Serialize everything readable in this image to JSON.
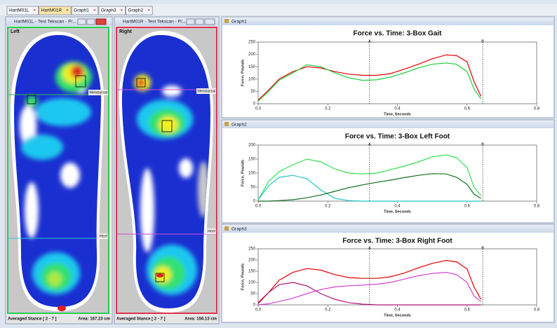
{
  "tabs": [
    "HartM01L",
    "HartM01R",
    "Graph1",
    "Graph3",
    "Graph2"
  ],
  "panels": [
    {
      "window_title": "HartM01L - Test Tekscan - P/...",
      "side": "Left",
      "regions": [
        "Metatarsal",
        "Heel"
      ],
      "stance": "Averaged Stance [ 2 - 7 ]",
      "area": "Area: 167.23 cm"
    },
    {
      "window_title": "HartM01R - Test Tekscan - P/...",
      "side": "Right",
      "regions": [
        "Metatarsal",
        "Heel"
      ],
      "stance": "Averaged Stance [ 2 - 7 ]",
      "area": "Area: 156.13 cm"
    }
  ],
  "chart_data": [
    {
      "type": "line",
      "window_title": "Graph1",
      "title": "Force vs. Time: 3-Box Gait",
      "x_label": "Time, Seconds",
      "y_label": "Force, Pounds",
      "x": [
        0,
        0.03,
        0.06,
        0.1,
        0.14,
        0.18,
        0.22,
        0.26,
        0.3,
        0.34,
        0.38,
        0.42,
        0.46,
        0.5,
        0.54,
        0.57,
        0.6,
        0.62,
        0.64
      ],
      "series": [
        {
          "color": "#e00000",
          "values": [
            15,
            55,
            100,
            130,
            150,
            145,
            130,
            120,
            115,
            115,
            122,
            140,
            160,
            182,
            198,
            195,
            170,
            90,
            30
          ]
        },
        {
          "color": "#20d040",
          "values": [
            10,
            50,
            95,
            125,
            158,
            150,
            125,
            105,
            95,
            97,
            108,
            125,
            145,
            160,
            165,
            160,
            130,
            60,
            20
          ]
        }
      ],
      "markers": [
        {
          "label": "A",
          "value": 0.32
        },
        {
          "label": "B",
          "value": 0.645
        }
      ],
      "xlim": [
        0,
        0.8
      ],
      "xticks": [
        {
          "value": 0,
          "label": "0.0"
        },
        0.2,
        0.4,
        0.6,
        0.8
      ],
      "ylim": [
        0,
        250
      ],
      "yticks": [
        0,
        50,
        100,
        150,
        200,
        250
      ]
    },
    {
      "type": "line",
      "window_title": "Graph2",
      "title": "Force vs. Time: 3-Box Left Foot",
      "x_label": "Time, Seconds",
      "y_label": "Force, Pounds",
      "x": [
        0,
        0.03,
        0.06,
        0.1,
        0.14,
        0.18,
        0.22,
        0.26,
        0.3,
        0.34,
        0.38,
        0.42,
        0.46,
        0.5,
        0.54,
        0.57,
        0.6,
        0.62,
        0.64
      ],
      "series": [
        {
          "color": "#30e050",
          "values": [
            5,
            70,
            105,
            130,
            150,
            140,
            115,
            100,
            97,
            100,
            112,
            125,
            140,
            158,
            165,
            155,
            120,
            50,
            20
          ]
        },
        {
          "color": "#20c8c8",
          "values": [
            5,
            55,
            85,
            92,
            80,
            40,
            10,
            2,
            0,
            0,
            0,
            0,
            0,
            0,
            0,
            0,
            0,
            0,
            0
          ]
        },
        {
          "color": "#107020",
          "values": [
            0,
            0,
            2,
            5,
            12,
            22,
            35,
            48,
            58,
            67,
            75,
            84,
            92,
            98,
            97,
            85,
            60,
            25,
            10
          ]
        }
      ],
      "markers": [
        {
          "label": "A",
          "value": 0.32
        },
        {
          "label": "B",
          "value": 0.645
        }
      ],
      "xlim": [
        0,
        0.8
      ],
      "xticks": [
        {
          "value": 0,
          "label": "0.0"
        },
        0.2,
        0.4,
        0.6,
        0.8
      ],
      "ylim": [
        0,
        200
      ],
      "yticks": [
        0,
        50,
        100,
        150,
        200
      ]
    },
    {
      "type": "line",
      "window_title": "Graph3",
      "title": "Force vs. Time: 3-Box Right Foot",
      "x_label": "Time, Seconds",
      "y_label": "Force, Pounds",
      "x": [
        0,
        0.03,
        0.06,
        0.1,
        0.14,
        0.18,
        0.22,
        0.26,
        0.3,
        0.34,
        0.38,
        0.42,
        0.46,
        0.5,
        0.54,
        0.57,
        0.6,
        0.62,
        0.64
      ],
      "series": [
        {
          "color": "#e00000",
          "values": [
            10,
            55,
            110,
            145,
            162,
            155,
            135,
            122,
            118,
            118,
            125,
            142,
            165,
            185,
            198,
            192,
            160,
            80,
            25
          ]
        },
        {
          "color": "#b0107a",
          "values": [
            5,
            55,
            90,
            100,
            85,
            50,
            25,
            10,
            3,
            0,
            0,
            0,
            0,
            0,
            0,
            0,
            0,
            0,
            0
          ]
        },
        {
          "color": "#d040d0",
          "values": [
            0,
            5,
            15,
            30,
            50,
            68,
            80,
            85,
            88,
            92,
            100,
            115,
            130,
            140,
            145,
            135,
            100,
            40,
            15
          ]
        }
      ],
      "markers": [
        {
          "label": "A",
          "value": 0.32
        },
        {
          "label": "B",
          "value": 0.645
        }
      ],
      "xlim": [
        0,
        0.8
      ],
      "xticks": [
        {
          "value": 0,
          "label": "0.0"
        },
        0.2,
        0.4,
        0.6,
        0.8
      ],
      "ylim": [
        0,
        250
      ],
      "yticks": [
        0,
        50,
        100,
        150,
        200,
        250
      ]
    }
  ]
}
